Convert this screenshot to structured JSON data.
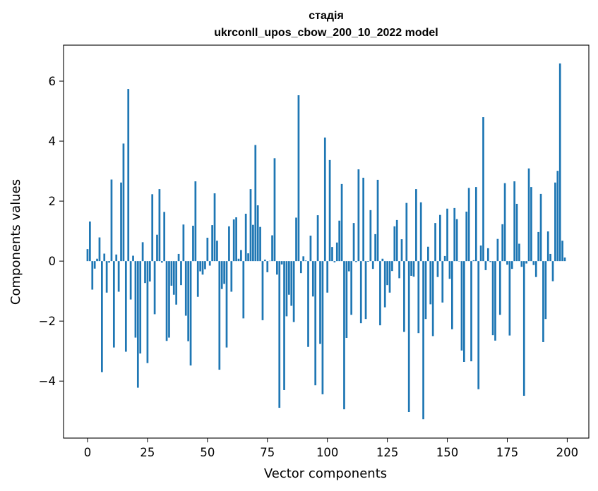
{
  "chart_data": {
    "type": "bar",
    "title_line1": "стадія",
    "title_line2": "ukrconll_upos_cbow_200_10_2022 model",
    "xlabel": "Vector components",
    "ylabel": "Components values",
    "xlim": [
      -10,
      209
    ],
    "ylim": [
      -5.9,
      7.2
    ],
    "x_ticks": [
      0,
      25,
      50,
      75,
      100,
      125,
      150,
      175,
      200
    ],
    "y_ticks": [
      -4,
      -2,
      0,
      2,
      4,
      6
    ],
    "y_tick_labels": [
      "−4",
      "−2",
      "0",
      "2",
      "4",
      "6"
    ],
    "bar_color": "#1f77b4",
    "grid": false,
    "values": [
      0.4,
      1.32,
      -0.95,
      -0.25,
      0.08,
      0.79,
      -3.7,
      0.25,
      -1.05,
      -0.05,
      2.72,
      -2.88,
      0.22,
      -1.02,
      2.62,
      3.92,
      -3.02,
      5.74,
      -1.28,
      0.18,
      -2.55,
      -4.22,
      -3.08,
      0.63,
      -0.73,
      -3.4,
      -0.68,
      2.23,
      -1.77,
      0.88,
      2.4,
      -0.05,
      1.64,
      -2.66,
      -2.55,
      -0.82,
      -1.12,
      -1.45,
      0.24,
      -0.8,
      1.22,
      -1.82,
      -2.67,
      -3.48,
      1.18,
      2.66,
      -1.19,
      -0.34,
      -0.45,
      -0.27,
      0.78,
      -0.15,
      1.2,
      2.26,
      0.68,
      -3.62,
      -0.93,
      -0.76,
      -2.88,
      1.16,
      -1.02,
      1.39,
      1.46,
      0.08,
      0.37,
      -1.91,
      1.58,
      0.26,
      2.4,
      1.21,
      3.87,
      1.86,
      1.14,
      -1.97,
      0.05,
      -0.37,
      0.01,
      0.86,
      3.43,
      -0.45,
      -4.89,
      -0.11,
      -4.3,
      -1.84,
      -1.12,
      -1.49,
      -2.03,
      1.45,
      5.53,
      -0.4,
      0.16,
      0.02,
      -2.86,
      0.85,
      -1.18,
      -4.14,
      1.53,
      -2.76,
      -4.44,
      4.12,
      -1.05,
      3.37,
      0.47,
      -0.04,
      0.62,
      1.35,
      2.57,
      -4.94,
      -2.56,
      -0.34,
      -1.79,
      1.27,
      -0.03,
      3.06,
      -2.07,
      2.78,
      -1.93,
      -0.02,
      1.7,
      -0.26,
      0.9,
      2.71,
      -2.14,
      0.08,
      -1.54,
      -0.8,
      -1.05,
      -0.33,
      1.16,
      1.37,
      -0.57,
      0.73,
      -2.36,
      1.94,
      -5.03,
      -0.49,
      -0.52,
      2.4,
      -2.4,
      1.96,
      -5.27,
      -1.93,
      0.48,
      -1.44,
      -2.5,
      1.27,
      -0.53,
      1.54,
      -1.38,
      0.17,
      1.75,
      -0.59,
      -2.27,
      1.77,
      1.4,
      -0.01,
      -2.98,
      -3.36,
      1.65,
      2.44,
      -3.34,
      0.03,
      2.47,
      -4.27,
      0.52,
      4.8,
      -0.3,
      0.43,
      -0.03,
      -2.47,
      -2.65,
      0.74,
      -1.79,
      1.23,
      2.6,
      -0.12,
      -2.48,
      -0.26,
      2.66,
      1.91,
      0.58,
      -0.19,
      -4.49,
      -0.08,
      3.09,
      2.47,
      -0.13,
      -0.53,
      0.97,
      2.24,
      -2.7,
      -1.93,
      0.99,
      0.24,
      -0.67,
      2.62,
      3.01,
      6.59,
      0.68,
      0.12
    ]
  }
}
